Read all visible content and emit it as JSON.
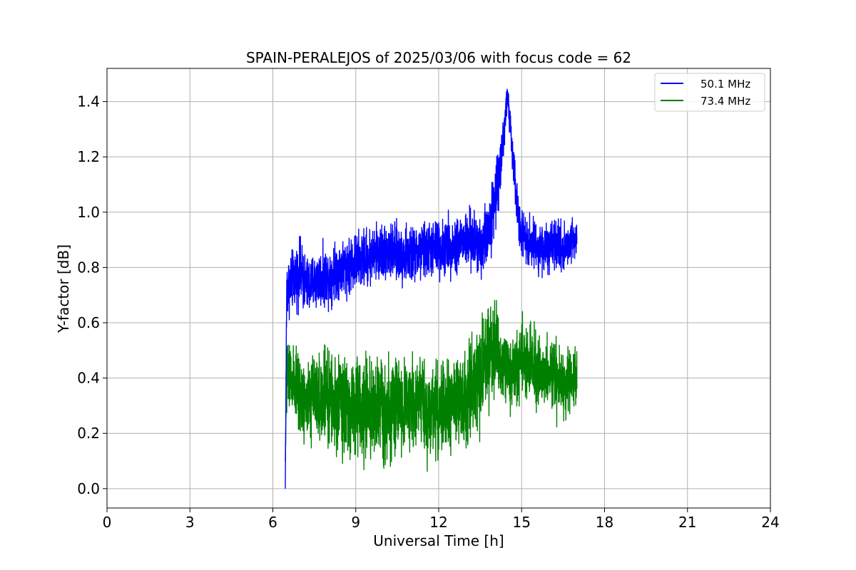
{
  "chart_data": {
    "type": "line",
    "title": "SPAIN-PERALEJOS of 2025/03/06 with focus code = 62",
    "xlabel": "Universal Time [h]",
    "ylabel": "Y-factor [dB]",
    "xlim": [
      0,
      24
    ],
    "ylim": [
      -0.07,
      1.52
    ],
    "xticks": [
      0,
      3,
      6,
      9,
      12,
      15,
      18,
      21,
      24
    ],
    "xtick_labels": [
      "0",
      "3",
      "6",
      "9",
      "12",
      "15",
      "18",
      "21",
      "24"
    ],
    "yticks": [
      0.0,
      0.2,
      0.4,
      0.6,
      0.8,
      1.0,
      1.2,
      1.4
    ],
    "ytick_labels": [
      "0.0",
      "0.2",
      "0.4",
      "0.6",
      "0.8",
      "1.0",
      "1.2",
      "1.4"
    ],
    "grid": true,
    "legend_position": "top-right",
    "series": [
      {
        "name": "50.1 MHz",
        "color": "#0000ff",
        "x": [
          6.45,
          6.5,
          6.75,
          7.0,
          7.25,
          7.5,
          7.75,
          8.0,
          8.5,
          9.0,
          9.5,
          10.0,
          10.5,
          11.0,
          11.5,
          12.0,
          12.5,
          13.0,
          13.5,
          13.75,
          14.0,
          14.2,
          14.4,
          14.5,
          14.6,
          14.8,
          15.0,
          15.25,
          15.5,
          15.75,
          16.0,
          16.25,
          16.5,
          16.75,
          17.0
        ],
        "values": [
          0.0,
          0.72,
          0.76,
          0.78,
          0.73,
          0.75,
          0.76,
          0.77,
          0.8,
          0.82,
          0.84,
          0.86,
          0.85,
          0.84,
          0.86,
          0.87,
          0.88,
          0.9,
          0.88,
          0.92,
          1.02,
          1.15,
          1.33,
          1.42,
          1.3,
          1.05,
          0.93,
          0.9,
          0.88,
          0.87,
          0.86,
          0.88,
          0.87,
          0.89,
          0.92
        ],
        "amplitude": [
          0.0,
          0.08,
          0.07,
          0.08,
          0.07,
          0.07,
          0.07,
          0.07,
          0.07,
          0.07,
          0.07,
          0.07,
          0.07,
          0.07,
          0.07,
          0.07,
          0.07,
          0.07,
          0.08,
          0.08,
          0.08,
          0.07,
          0.05,
          0.03,
          0.05,
          0.06,
          0.06,
          0.06,
          0.06,
          0.06,
          0.06,
          0.06,
          0.06,
          0.06,
          0.05
        ]
      },
      {
        "name": "73.4 MHz",
        "color": "#008000",
        "x": [
          6.45,
          6.5,
          6.75,
          7.0,
          7.25,
          7.5,
          7.75,
          8.0,
          8.5,
          9.0,
          9.5,
          10.0,
          10.5,
          11.0,
          11.5,
          12.0,
          12.5,
          13.0,
          13.5,
          13.75,
          14.0,
          14.2,
          14.4,
          14.6,
          14.8,
          15.0,
          15.25,
          15.5,
          15.75,
          16.0,
          16.25,
          16.5,
          16.75,
          17.0
        ],
        "values": [
          0.1,
          0.42,
          0.36,
          0.33,
          0.31,
          0.34,
          0.33,
          0.32,
          0.3,
          0.29,
          0.3,
          0.28,
          0.3,
          0.31,
          0.29,
          0.3,
          0.31,
          0.33,
          0.4,
          0.48,
          0.52,
          0.47,
          0.44,
          0.42,
          0.43,
          0.48,
          0.45,
          0.44,
          0.42,
          0.41,
          0.4,
          0.39,
          0.38,
          0.4
        ],
        "amplitude": [
          0.0,
          0.09,
          0.1,
          0.1,
          0.1,
          0.11,
          0.11,
          0.11,
          0.12,
          0.12,
          0.12,
          0.13,
          0.12,
          0.12,
          0.12,
          0.12,
          0.12,
          0.12,
          0.12,
          0.13,
          0.12,
          0.1,
          0.09,
          0.09,
          0.09,
          0.1,
          0.09,
          0.09,
          0.09,
          0.09,
          0.09,
          0.09,
          0.08,
          0.07
        ]
      }
    ]
  }
}
